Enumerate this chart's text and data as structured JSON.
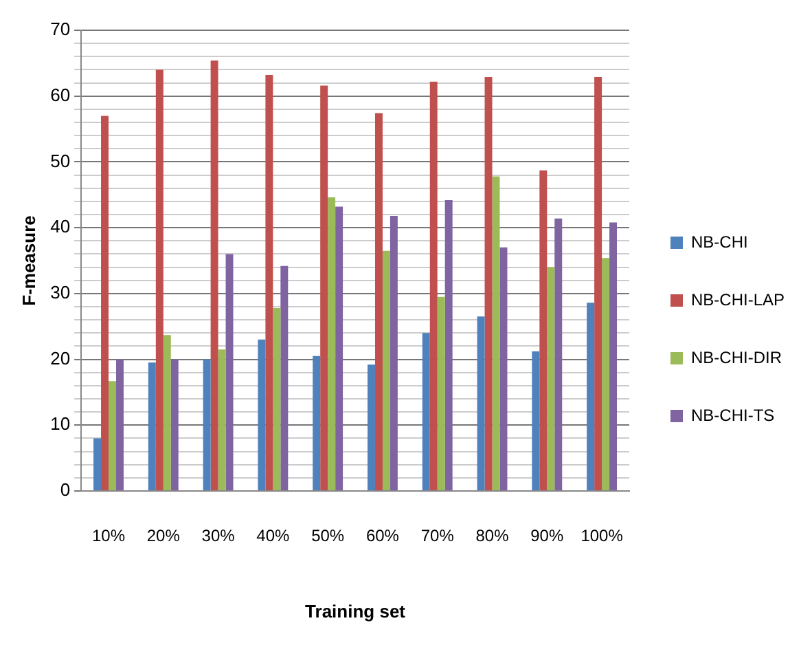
{
  "chart_data": {
    "type": "bar",
    "xlabel": "Training set",
    "ylabel": "F-measure",
    "categories": [
      "10%",
      "20%",
      "30%",
      "40%",
      "50%",
      "60%",
      "70%",
      "80%",
      "90%",
      "100%"
    ],
    "series": [
      {
        "name": "NB-CHI",
        "color": "#4f81bd",
        "values": [
          8,
          19.5,
          20,
          23,
          20.5,
          19.2,
          24,
          26.5,
          21.2,
          28.6
        ]
      },
      {
        "name": "NB-CHI-LAP",
        "color": "#c0504d",
        "values": [
          57,
          64,
          65.4,
          63.2,
          61.6,
          57.4,
          62.2,
          62.9,
          48.7,
          62.9
        ]
      },
      {
        "name": "NB-CHI-DIR",
        "color": "#9bbb59",
        "values": [
          16.7,
          23.7,
          21.5,
          27.8,
          44.6,
          36.5,
          29.5,
          47.8,
          34,
          35.4
        ]
      },
      {
        "name": "NB-CHI-TS",
        "color": "#8064a2",
        "values": [
          20,
          20,
          36,
          34.2,
          43.2,
          41.8,
          44.2,
          37,
          41.4,
          40.8
        ]
      }
    ],
    "ylim": [
      0,
      70
    ],
    "yticks": [
      0,
      {
        "value": 2,
        "label": null
      },
      {
        "value": 4,
        "label": null
      },
      {
        "value": 6,
        "label": null
      },
      {
        "value": 8,
        "label": null
      },
      10,
      {
        "value": 12,
        "label": null
      },
      {
        "value": 14,
        "label": null
      },
      {
        "value": 16,
        "label": null
      },
      {
        "value": 18,
        "label": null
      },
      20,
      {
        "value": 22,
        "label": null
      },
      {
        "value": 24,
        "label": null
      },
      {
        "value": 26,
        "label": null
      },
      {
        "value": 28,
        "label": null
      },
      30,
      {
        "value": 32,
        "label": null
      },
      {
        "value": 34,
        "label": null
      },
      {
        "value": 36,
        "label": null
      },
      {
        "value": 38,
        "label": null
      },
      40,
      {
        "value": 42,
        "label": null
      },
      {
        "value": 44,
        "label": null
      },
      {
        "value": 46,
        "label": null
      },
      {
        "value": 48,
        "label": null
      },
      50,
      {
        "value": 52,
        "label": null
      },
      {
        "value": 54,
        "label": null
      },
      {
        "value": 56,
        "label": null
      },
      {
        "value": 58,
        "label": null
      },
      60,
      {
        "value": 62,
        "label": null
      },
      {
        "value": 64,
        "label": null
      },
      {
        "value": 66,
        "label": null
      },
      {
        "value": 68,
        "label": null
      },
      70
    ],
    "grid": "y",
    "legend": "right"
  }
}
